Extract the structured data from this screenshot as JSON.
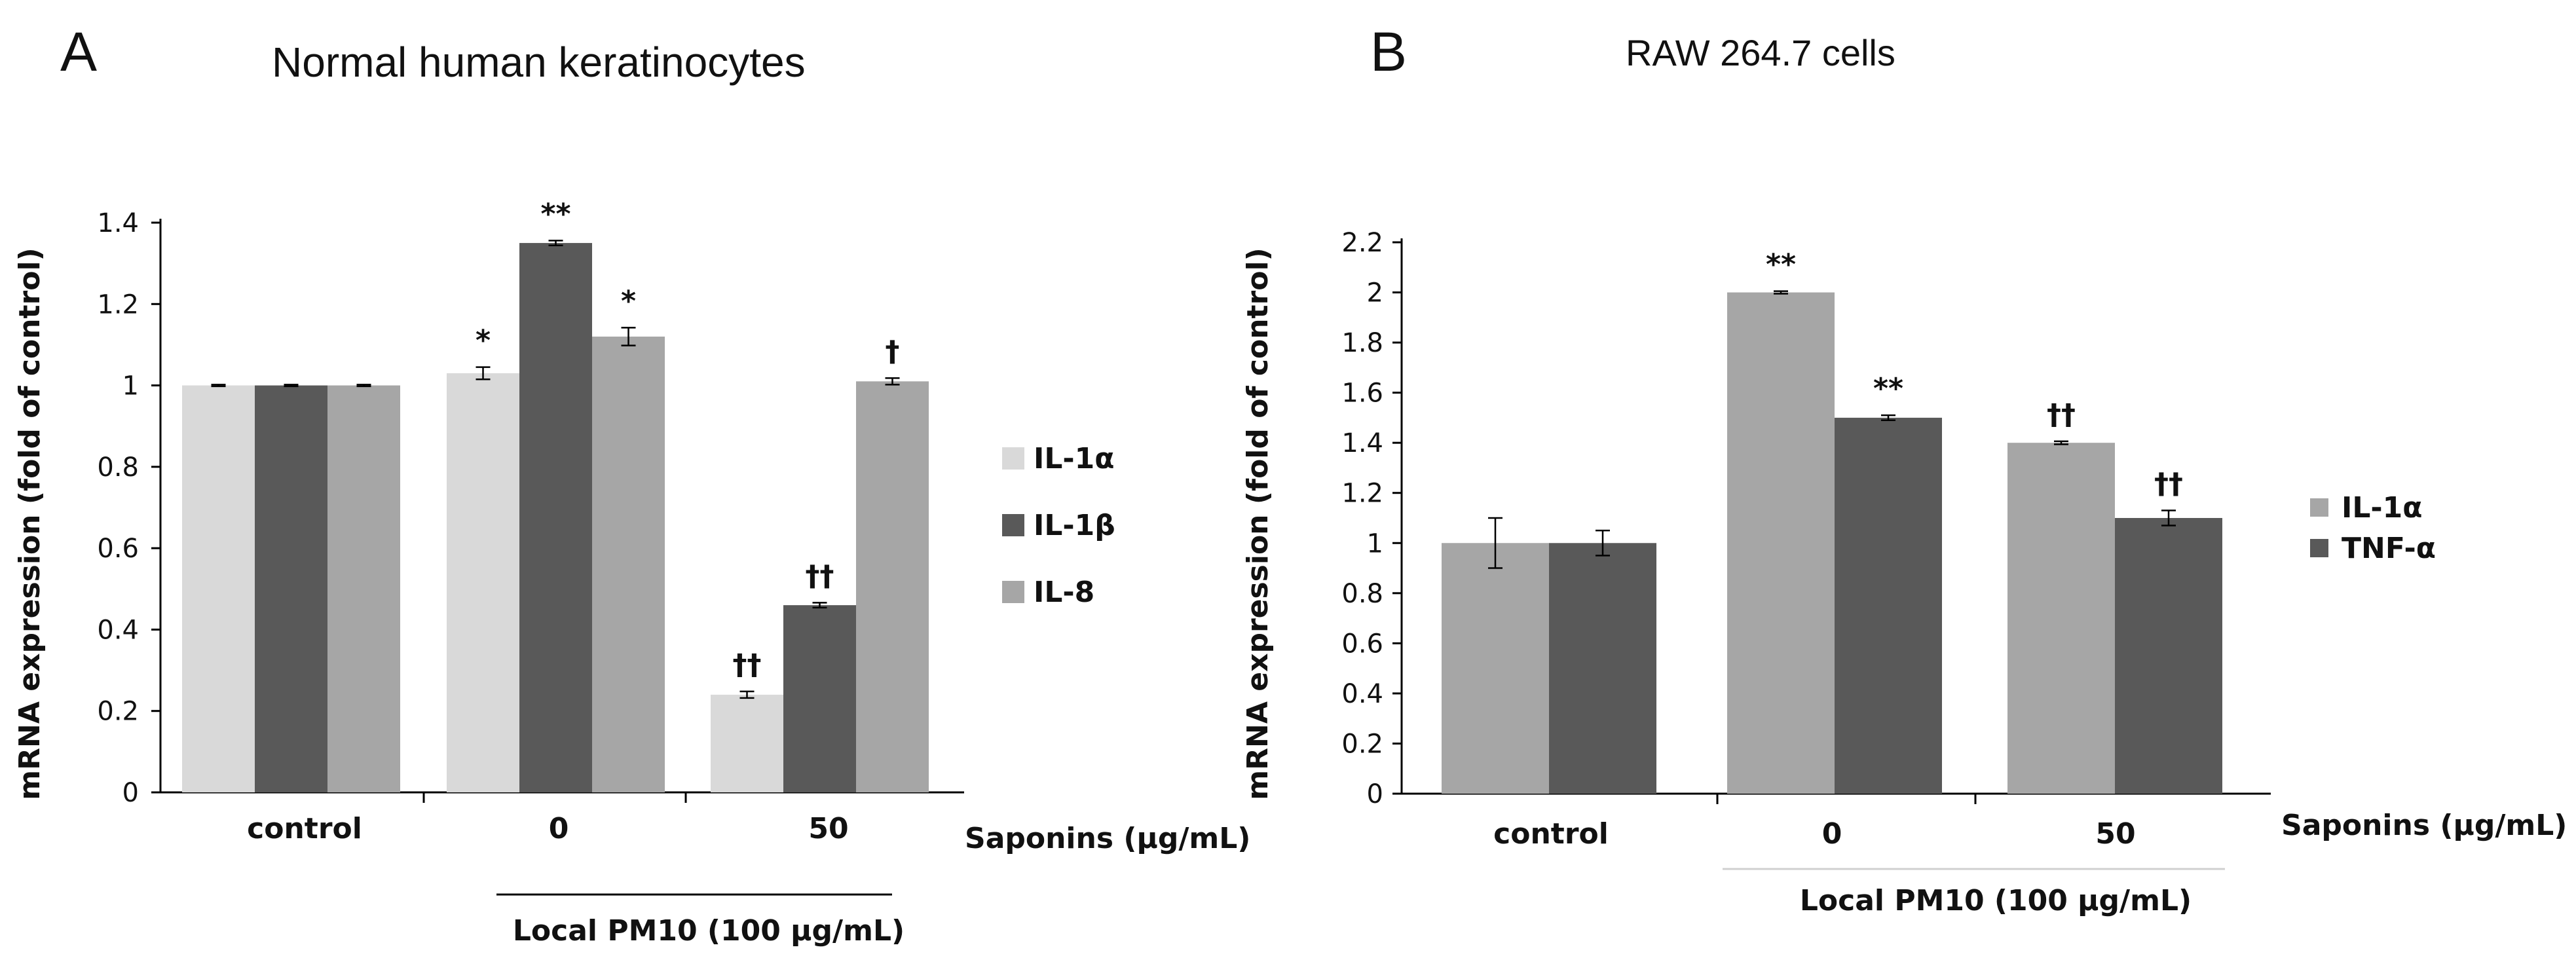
{
  "chart_data": [
    {
      "panel_letter": "A",
      "type": "bar",
      "title": "Normal  human keratinocytes",
      "ylabel": "mRNA expression (fold of control)",
      "xlabel": "Saponins (μg/mL)",
      "group_label": "Local PM10 (100 μg/mL)",
      "categories": [
        "control",
        "0",
        "50"
      ],
      "ylim": [
        0,
        1.4
      ],
      "yticks": [
        0,
        0.2,
        0.4,
        0.6,
        0.8,
        1,
        1.2,
        1.4
      ],
      "ytick_labels": [
        "0",
        "0.2",
        "0.4",
        "0.6",
        "0.8",
        "1",
        "1.2",
        "1.4"
      ],
      "series": [
        {
          "name": "IL-1α",
          "color": "#d9d9d9",
          "values": [
            1.0,
            1.03,
            0.24
          ],
          "errors": [
            0.002,
            0.015,
            0.008
          ],
          "annotations": [
            "",
            "*",
            "††"
          ]
        },
        {
          "name": "IL-1β",
          "color": "#595959",
          "values": [
            1.0,
            1.35,
            0.46
          ],
          "errors": [
            0.002,
            0.006,
            0.006
          ],
          "annotations": [
            "",
            "**",
            "††"
          ]
        },
        {
          "name": "IL-8",
          "color": "#a6a6a6",
          "values": [
            1.0,
            1.12,
            1.01
          ],
          "errors": [
            0.002,
            0.022,
            0.008
          ],
          "annotations": [
            "",
            "*",
            "†"
          ]
        }
      ],
      "legend_position": "right"
    },
    {
      "panel_letter": "B",
      "type": "bar",
      "title": "RAW 264.7 cells",
      "ylabel": "mRNA expression (fold of control)",
      "xlabel": "Saponins (μg/mL)",
      "group_label": "Local PM10 (100 μg/mL)",
      "categories": [
        "control",
        "0",
        "50"
      ],
      "ylim": [
        0,
        2.2
      ],
      "yticks": [
        0,
        0.2,
        0.4,
        0.6,
        0.8,
        1,
        1.2,
        1.4,
        1.6,
        1.8,
        2,
        2.2
      ],
      "ytick_labels": [
        "0",
        "0.2",
        "0.4",
        "0.6",
        "0.8",
        "1",
        "1.2",
        "1.4",
        "1.6",
        "1.8",
        "2",
        "2.2"
      ],
      "series": [
        {
          "name": "IL-1α",
          "color": "#a6a6a6",
          "values": [
            1.0,
            2.0,
            1.4
          ],
          "errors": [
            0.1,
            0.005,
            0.006
          ],
          "annotations": [
            "",
            "**",
            "††"
          ]
        },
        {
          "name": "TNF-α",
          "color": "#595959",
          "values": [
            1.0,
            1.5,
            1.1
          ],
          "errors": [
            0.05,
            0.01,
            0.03
          ],
          "annotations": [
            "",
            "**",
            "††"
          ]
        }
      ],
      "legend_position": "right"
    }
  ]
}
